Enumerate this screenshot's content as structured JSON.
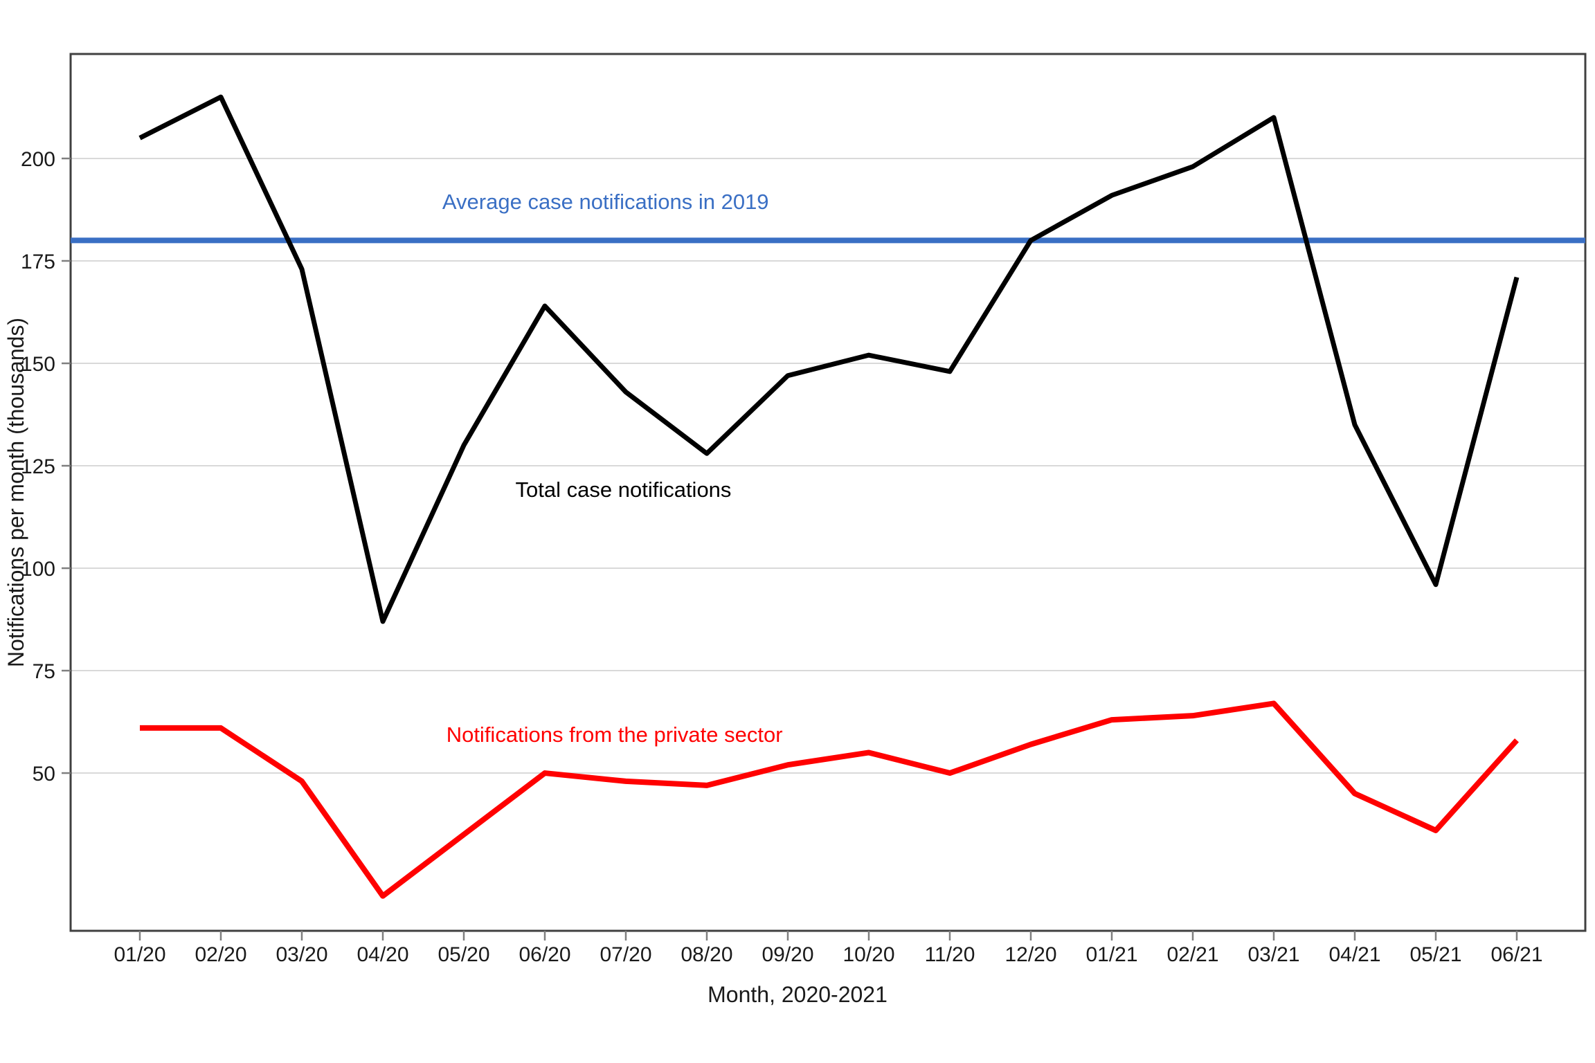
{
  "chart_data": {
    "type": "line",
    "title": "",
    "xlabel": "Month, 2020-2021",
    "ylabel": "Notifications per month (thousands)",
    "x_categories": [
      "01/20",
      "02/20",
      "03/20",
      "04/20",
      "05/20",
      "06/20",
      "07/20",
      "08/20",
      "09/20",
      "10/20",
      "11/20",
      "12/20",
      "01/21",
      "02/21",
      "03/21",
      "04/21",
      "05/21",
      "06/21"
    ],
    "y_ticks": [
      50,
      75,
      100,
      125,
      150,
      175,
      200
    ],
    "ylim": [
      11.5,
      225.5
    ],
    "grid": "horizontal-only",
    "legend": "none (direct labels on chart)",
    "background_color": "#ffffff",
    "gridline_color": "#d9d9d9",
    "border_color": "#404040",
    "tick_color": "#7f7f7f",
    "label_color": "#1a1a1a",
    "series": [
      {
        "name": "Total case notifications",
        "color": "#000000",
        "values": [
          205,
          215,
          173,
          87,
          130,
          164,
          143,
          128,
          147,
          152,
          148,
          180,
          191,
          198,
          210,
          135,
          96,
          171
        ]
      },
      {
        "name": "Notifications from the private sector",
        "color": "#ff0000",
        "values": [
          61,
          61,
          48,
          20,
          35,
          50,
          48,
          47,
          52,
          55,
          50,
          57,
          63,
          64,
          67,
          45,
          36,
          58
        ]
      }
    ],
    "reference_line": {
      "label": "Average case notifications in 2019",
      "value": 180,
      "color": "#3a6fc4"
    },
    "annotations": [
      {
        "text": "Average case notifications in 2019",
        "color": "#3a6fc4",
        "x": 5.75,
        "y": 189.5
      },
      {
        "text": "Total case notifications",
        "color": "#000000",
        "x": 5.97,
        "y": 119.3
      },
      {
        "text": "Notifications from the private sector",
        "color": "#ff0000",
        "x": 5.86,
        "y": 59.5
      }
    ]
  }
}
